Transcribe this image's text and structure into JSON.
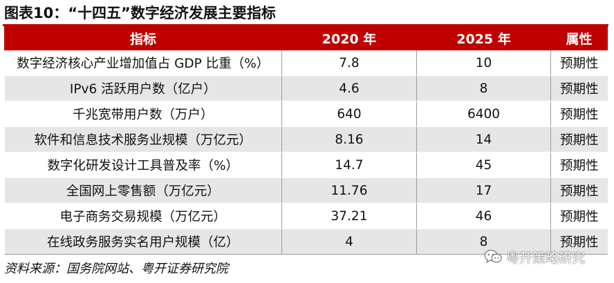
{
  "figure": {
    "title": "图表10：“十四五”数字经济发展主要指标",
    "source": "资料来源：国务院网站、粤开证券研究院",
    "watermark": "粤开策略研究"
  },
  "table": {
    "headers": [
      "指标",
      "2020 年",
      "2025 年",
      "属性"
    ],
    "rows": [
      [
        "数字经济核心产业增加值占 GDP 比重（%）",
        "7.8",
        "10",
        "预期性"
      ],
      [
        "IPv6 活跃用户数（亿户）",
        "4.6",
        "8",
        "预期性"
      ],
      [
        "千兆宽带用户数（万户）",
        "640",
        "6400",
        "预期性"
      ],
      [
        "软件和信息技术服务业规模（万亿元）",
        "8.16",
        "14",
        "预期性"
      ],
      [
        "数字化研发设计工具普及率（%）",
        "14.7",
        "45",
        "预期性"
      ],
      [
        "全国网上零售额（万亿元）",
        "11.76",
        "17",
        "预期性"
      ],
      [
        "电子商务交易规模（万亿元）",
        "37.21",
        "46",
        "预期性"
      ],
      [
        "在线政务服务实名用户规模（亿）",
        "4",
        "8",
        "预期性"
      ]
    ]
  },
  "colors": {
    "header_bg": "#c00000",
    "header_text": "#ffffff",
    "stripe": "#e6e6e6"
  },
  "icons": {
    "watermark": "wechat-chat-icon"
  }
}
